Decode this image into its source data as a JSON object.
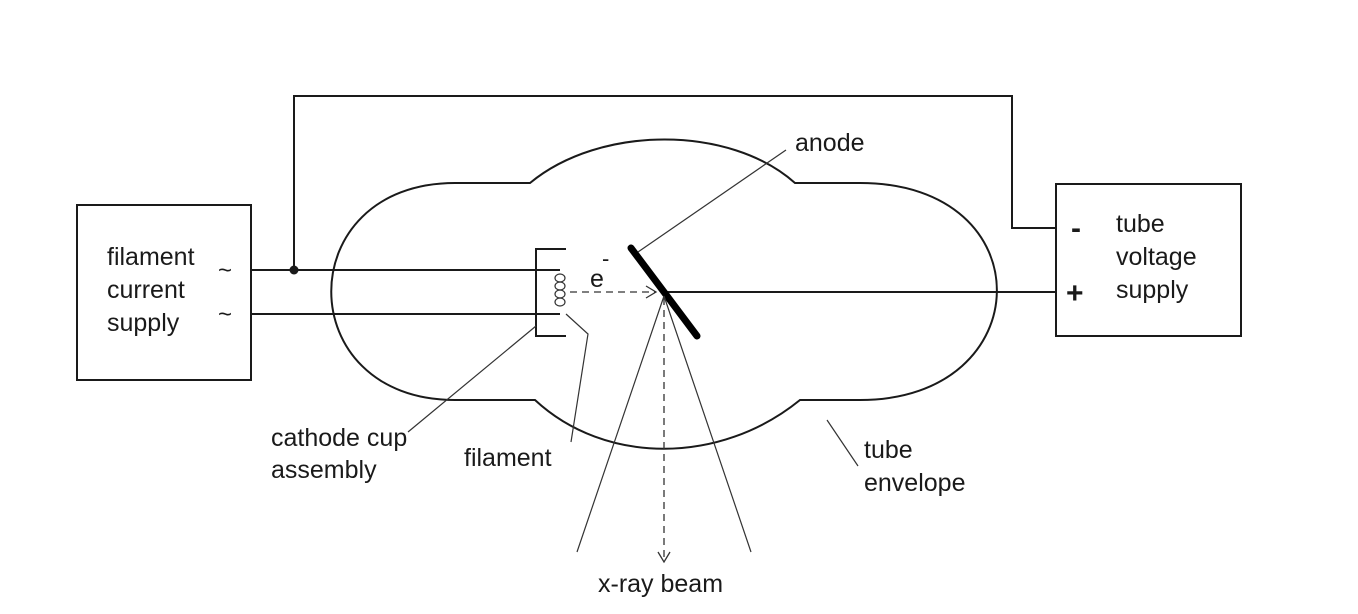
{
  "labels": {
    "filament_current_supply": [
      "filament",
      "current",
      "supply"
    ],
    "ac_symbol": "~",
    "tube_voltage_supply": [
      "tube",
      "voltage",
      "supply"
    ],
    "minus": "-",
    "plus": "+",
    "anode": "anode",
    "electron": "e",
    "electron_charge": "-",
    "cathode_cup_assembly": [
      "cathode cup",
      "assembly"
    ],
    "filament": "filament",
    "tube_envelope": [
      "tube",
      "envelope"
    ],
    "xray_beam": "x-ray beam"
  },
  "colors": {
    "line": "#1a1a1a",
    "background": "#ffffff"
  }
}
